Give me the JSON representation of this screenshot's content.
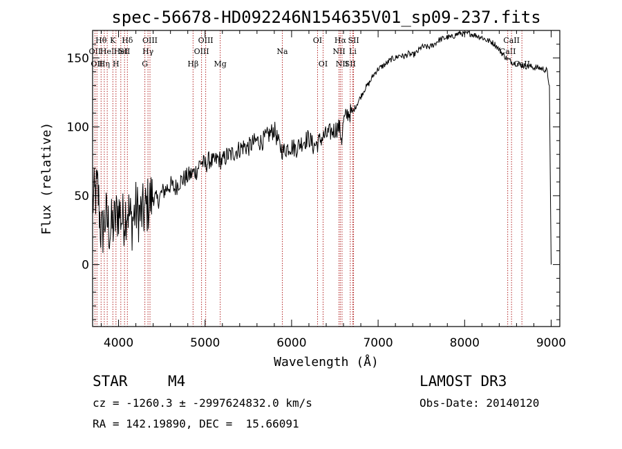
{
  "chart_data": {
    "type": "line",
    "title": "spec-56678-HD092246N154635V01_sp09-237.fits",
    "xlabel": "Wavelength (Å)",
    "ylabel": "Flux (relative)",
    "xlim": [
      3700,
      9100
    ],
    "ylim": [
      -45,
      170
    ],
    "x_ticks": [
      4000,
      5000,
      6000,
      7000,
      8000,
      9000
    ],
    "y_ticks": [
      0,
      50,
      100,
      150
    ],
    "grid": false,
    "colors": {
      "spectrum": "#000000",
      "line_markers": "#b22222"
    },
    "series": [
      {
        "name": "spectrum",
        "x": [
          3700,
          3760,
          3800,
          3850,
          3900,
          3950,
          4000,
          4050,
          4100,
          4150,
          4200,
          4250,
          4300,
          4350,
          4400,
          4450,
          4500,
          4550,
          4600,
          4650,
          4700,
          4750,
          4800,
          4850,
          4900,
          4950,
          5000,
          5050,
          5100,
          5150,
          5200,
          5250,
          5300,
          5350,
          5400,
          5450,
          5500,
          5550,
          5600,
          5650,
          5700,
          5750,
          5800,
          5850,
          5900,
          5950,
          6000,
          6050,
          6100,
          6150,
          6200,
          6250,
          6300,
          6350,
          6400,
          6450,
          6500,
          6550,
          6580,
          6600,
          6650,
          6700,
          6750,
          6800,
          6850,
          6900,
          6950,
          7000,
          7050,
          7100,
          7150,
          7200,
          7250,
          7300,
          7350,
          7400,
          7450,
          7500,
          7550,
          7600,
          7650,
          7700,
          7750,
          7800,
          7850,
          7900,
          7950,
          8000,
          8050,
          8100,
          8150,
          8200,
          8250,
          8300,
          8350,
          8400,
          8450,
          8500,
          8550,
          8600,
          8650,
          8700,
          8750,
          8800,
          8850,
          8900,
          8950,
          8980,
          9000
        ],
        "y": [
          45,
          55,
          20,
          35,
          25,
          30,
          40,
          32,
          42,
          30,
          40,
          36,
          38,
          45,
          50,
          46,
          52,
          55,
          58,
          55,
          60,
          62,
          64,
          66,
          68,
          75,
          72,
          76,
          74,
          77,
          75,
          79,
          80,
          82,
          84,
          86,
          85,
          88,
          90,
          89,
          92,
          95,
          98,
          88,
          82,
          85,
          86,
          84,
          88,
          90,
          92,
          86,
          88,
          92,
          94,
          96,
          98,
          100,
          91,
          104,
          110,
          110,
          116,
          122,
          128,
          132,
          138,
          142,
          144,
          146,
          149,
          150,
          152,
          151,
          153,
          152,
          154,
          158,
          158,
          158,
          160,
          163,
          164,
          165,
          165,
          167,
          168,
          167,
          168,
          167,
          166,
          165,
          163,
          162,
          160,
          156,
          152,
          149,
          147,
          146,
          145,
          144,
          144,
          143,
          143,
          142,
          141,
          130,
          0
        ]
      }
    ],
    "line_markers": [
      {
        "x": 3727,
        "labels": [
          "OII"
        ],
        "row": 2
      },
      {
        "x": 3750,
        "labels": [
          "OII"
        ],
        "row": 3
      },
      {
        "x": 3798,
        "labels": [
          "Hθ"
        ],
        "row": 1
      },
      {
        "x": 3835,
        "labels": [
          "Hη"
        ],
        "row": 3
      },
      {
        "x": 3869,
        "labels": [
          "HeI"
        ],
        "row": 2
      },
      {
        "x": 3934,
        "labels": [
          "K"
        ],
        "row": 1
      },
      {
        "x": 3970,
        "labels": [
          "H"
        ],
        "row": 3
      },
      {
        "x": 4026,
        "labels": [
          "HeI"
        ],
        "row": 2
      },
      {
        "x": 4069,
        "labels": [
          "SII"
        ],
        "row": 2
      },
      {
        "x": 4102,
        "labels": [
          "Hδ"
        ],
        "row": 1
      },
      {
        "x": 4304,
        "labels": [
          "G"
        ],
        "row": 3
      },
      {
        "x": 4340,
        "labels": [
          "Hγ"
        ],
        "row": 2
      },
      {
        "x": 4363,
        "labels": [
          "OIII"
        ],
        "row": 1
      },
      {
        "x": 4861,
        "labels": [
          "Hβ"
        ],
        "row": 3
      },
      {
        "x": 4959,
        "labels": [
          "OIII"
        ],
        "row": 2
      },
      {
        "x": 5007,
        "labels": [
          "OIII"
        ],
        "row": 1
      },
      {
        "x": 5175,
        "labels": [
          "Mg"
        ],
        "row": 3
      },
      {
        "x": 5893,
        "labels": [
          "Na"
        ],
        "row": 2
      },
      {
        "x": 6300,
        "labels": [
          "OI"
        ],
        "row": 1
      },
      {
        "x": 6364,
        "labels": [
          "OI"
        ],
        "row": 3
      },
      {
        "x": 6548,
        "labels": [
          "NII"
        ],
        "row": 2
      },
      {
        "x": 6563,
        "labels": [
          "Hα"
        ],
        "row": 1
      },
      {
        "x": 6583,
        "labels": [
          "NII"
        ],
        "row": 3
      },
      {
        "x": 6678,
        "labels": [
          "SII"
        ],
        "row": 3
      },
      {
        "x": 6707,
        "labels": [
          "Li"
        ],
        "row": 2
      },
      {
        "x": 6716,
        "labels": [
          "SII"
        ],
        "row": 1
      },
      {
        "x": 8498,
        "labels": [
          "CaII"
        ],
        "row": 2
      },
      {
        "x": 8542,
        "labels": [
          "CaII"
        ],
        "row": 1
      },
      {
        "x": 8662,
        "labels": [
          "CaII"
        ],
        "row": 3
      }
    ]
  },
  "info": {
    "classification": "STAR",
    "subclass": "M4",
    "survey": "LAMOST DR3",
    "cz_line": "cz = -1260.3 ± -2997624832.0 km/s",
    "obs_date": "Obs-Date: 20140120",
    "coords": "RA = 142.19890, DEC =  15.66091"
  }
}
